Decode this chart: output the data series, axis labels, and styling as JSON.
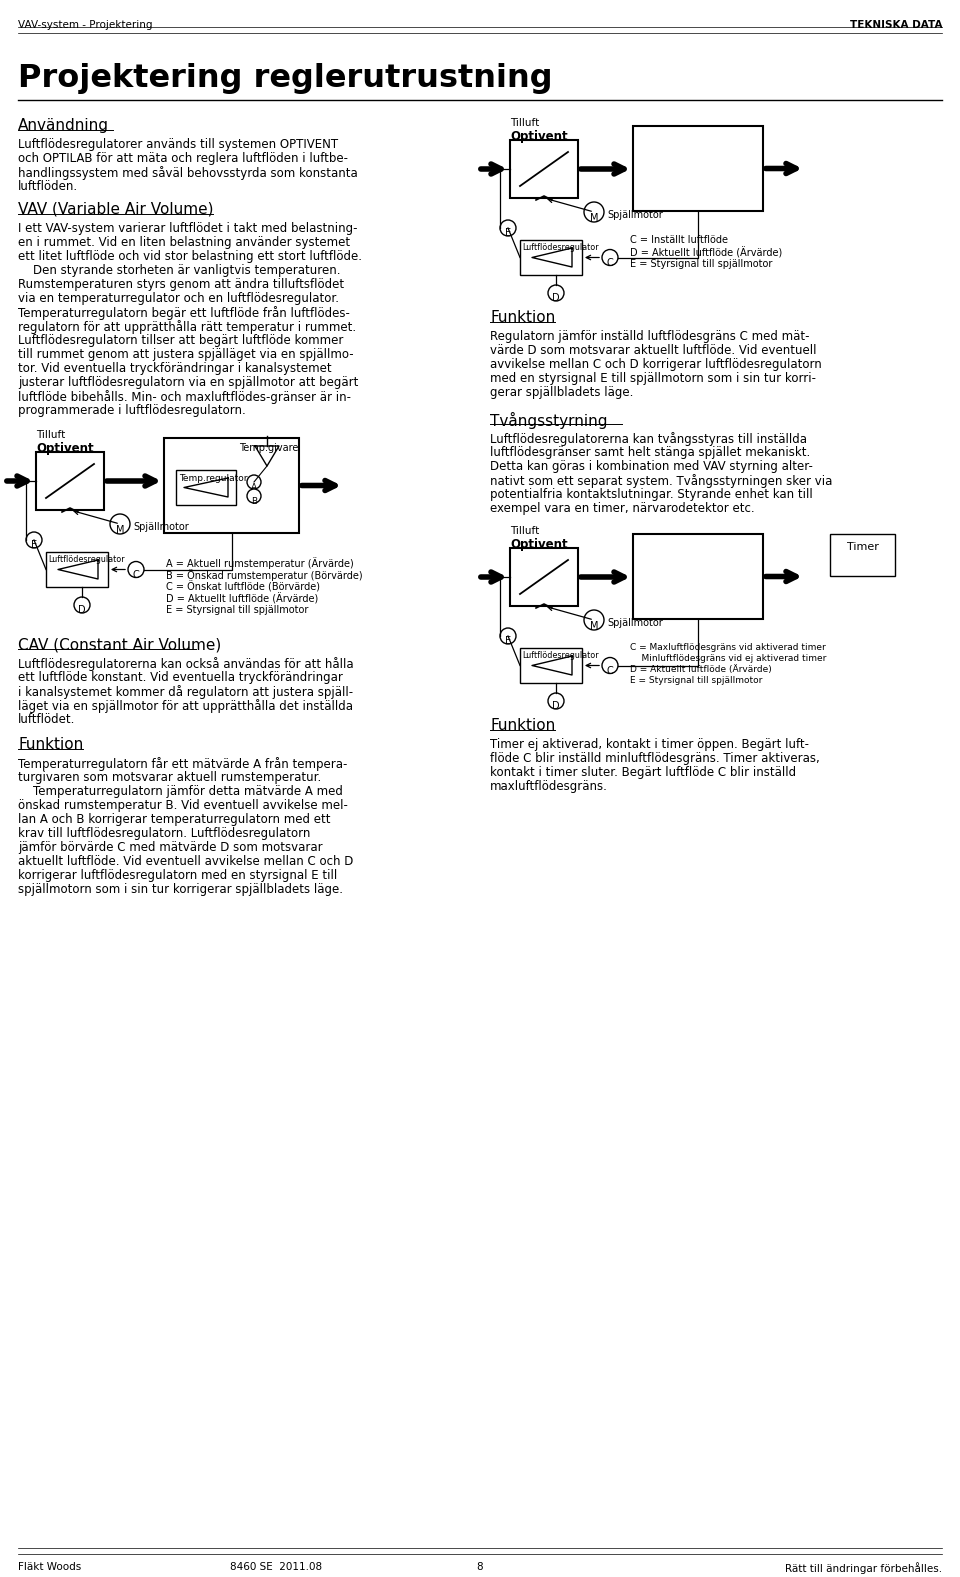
{
  "page_title": "Projektering reglerutrustning",
  "header_left": "VAV-system - Projektering",
  "header_right": "TEKNISKA DATA",
  "footer_left": "Fläkt Woods",
  "footer_center": "8460 SE  2011.08",
  "footer_page": "8",
  "footer_right": "Rätt till ändringar förbehålles.",
  "section1_title": "Användning",
  "section1_body": "Luftflödesregulatorer används till systemen OPTIVENT\noch OPTILAB för att mäta och reglera luftflöden i luftbe-\nhandlingssystem med såväl behovsstyrda som konstanta\nluftflöden.",
  "section2_title": "VAV (Variable Air Volume)",
  "section2_body_lines": [
    "I ett VAV-system varierar luftflödet i takt med belastning-",
    "en i rummet. Vid en liten belastning använder systemet",
    "ett litet luftflöde och vid stor belastning ett stort luftflöde.",
    "    Den styrande storheten är vanligtvis temperaturen.",
    "Rumstemperaturen styrs genom att ändra tilluftsflödet",
    "via en temperaturregulator och en luftflödesregulator.",
    "Temperaturregulatorn begär ett luftflöde från luftflödes-",
    "regulatorn för att upprätthålla rätt temperatur i rummet.",
    "Luftflödesregulatorn tillser att begärt luftflöde kommer",
    "till rummet genom att justera spjälläget via en spjällmo-",
    "tor. Vid eventuella tryckförändringar i kanalsystemet",
    "justerar luftflödesregulatorn via en spjällmotor att begärt",
    "luftflöde bibehålls. Min- och maxluftflödes-gränser är in-",
    "programmerade i luftflödesregulatorn."
  ],
  "section4_title": "CAV (Constant Air Volume)",
  "section4_body_lines": [
    "Luftflödesregulatorerna kan också användas för att hålla",
    "ett luftflöde konstant. Vid eventuella tryckförändringar",
    "i kanalsystemet kommer då regulatorn att justera spjäll-",
    "läget via en spjällmotor för att upprätthålla det inställda",
    "luftflödet."
  ],
  "funktion2_title": "Funktion",
  "funktion2_body_lines": [
    "Temperaturregulatorn får ett mätvärde A från tempera-",
    "turgivaren som motsvarar aktuell rumstemperatur.",
    "    Temperaturregulatorn jämför detta mätvärde A med",
    "önskad rumstemperatur B. Vid eventuell avvikelse mel-",
    "lan A och B korrigerar temperaturregulatorn med ett",
    "krav till luftflödesregulatorn. Luftflödesregulatorn",
    "jämför börvärde C med mätvärde D som motsvarar",
    "aktuellt luftflöde. Vid eventuell avvikelse mellan C och D",
    "korrigerar luftflödesregulatorn med en styrsignal E till",
    "spjällmotorn som i sin tur korrigerar spjällbladets läge."
  ],
  "funktion1_title": "Funktion",
  "funktion1_body_lines": [
    "Regulatorn jämför inställd luftflödesgräns C med mät-",
    "värde D som motsvarar aktuellt luftflöde. Vid eventuell",
    "avvikelse mellan C och D korrigerar luftflödesregulatorn",
    "med en styrsignal E till spjällmotorn som i sin tur korri-",
    "gerar spjällbladets läge."
  ],
  "section3_title": "Tvångsstyrning",
  "section3_body_lines": [
    "Luftflödesregulatorerna kan tvångsstyras till inställda",
    "luftflödesgränser samt helt stänga spjället mekaniskt.",
    "Detta kan göras i kombination med VAV styrning alter-",
    "nativt som ett separat system. Tvångsstyrningen sker via",
    "potentialfria kontaktslutningar. Styrande enhet kan till",
    "exempel vara en timer, närvarodetektor etc."
  ],
  "funktion3_title": "Funktion",
  "funktion3_body_lines": [
    "Timer ej aktiverad, kontakt i timer öppen. Begärt luft-",
    "flöde C blir inställd minluftflödesgräns. Timer aktiveras,",
    "kontakt i timer sluter. Begärt luftflöde C blir inställd",
    "maxluftflödesgräns."
  ],
  "diag1_legend": [
    "C = Inställt luftflöde",
    "D = Aktuellt luftflöde (Ärvärde)",
    "E = Styrsignal till spjällmotor"
  ],
  "diag2_legend": [
    "A = Aktuell rumstemperatur (Ärvärde)",
    "B = Önskad rumstemperatur (Börvärde)",
    "C = Önskat luftflöde (Börvärde)",
    "D = Aktuellt luftflöde (Ärvärde)",
    "E = Styrsignal till spjällmotor"
  ],
  "diag3_legend": [
    "C = Maxluftflödesgräns vid aktiverad timer",
    "    Minluftflödesgräns vid ej aktiverad timer",
    "D = Aktuellt luftflöde (Ärvärde)",
    "E = Styrsignal till spjällmotor"
  ]
}
